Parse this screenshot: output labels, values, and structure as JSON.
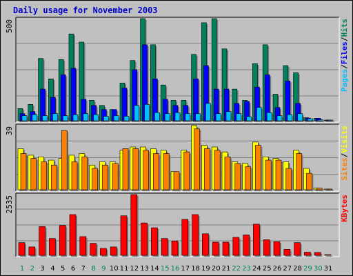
{
  "title": "Daily usage for November 2003",
  "days": [
    "1",
    "2",
    "3",
    "4",
    "5",
    "6",
    "7",
    "8",
    "9",
    "10",
    "11",
    "12",
    "13",
    "14",
    "15",
    "16",
    "17",
    "18",
    "19",
    "20",
    "21",
    "22",
    "23",
    "24",
    "25",
    "26",
    "27",
    "28",
    "29",
    "30",
    "31"
  ],
  "weekend_days": [
    "1",
    "2",
    "8",
    "9",
    "15",
    "16",
    "22",
    "23",
    "29",
    "30"
  ],
  "colors": {
    "hits": "#00805C",
    "files": "#0000FF",
    "pages": "#00C0FF",
    "visits": "#FFFF00",
    "sites": "#FF8000",
    "kbytes": "#FF0000",
    "weekday_label": "#000000",
    "weekend_label": "#00805C",
    "background": "#C0C0C0",
    "title": "#0000CC"
  },
  "panels": {
    "top": {
      "y_max_label": "500",
      "legend": [
        "Pages",
        "Files",
        "Hits"
      ]
    },
    "middle": {
      "y_max_label": "39",
      "legend": [
        "Sites",
        "Visits"
      ]
    },
    "bottom": {
      "y_max_label": "2535",
      "legend": [
        "KBytes"
      ]
    }
  },
  "chart_data": [
    {
      "type": "bar",
      "categories": [
        "1",
        "2",
        "3",
        "4",
        "5",
        "6",
        "7",
        "8",
        "9",
        "10",
        "11",
        "12",
        "13",
        "14",
        "15",
        "16",
        "17",
        "18",
        "19",
        "20",
        "21",
        "22",
        "23",
        "24",
        "25",
        "26",
        "27",
        "28",
        "29",
        "30",
        "31"
      ],
      "ylim": [
        0,
        500
      ],
      "series": [
        {
          "name": "Hits",
          "values": [
            60,
            80,
            305,
            205,
            300,
            425,
            385,
            100,
            75,
            55,
            185,
            295,
            500,
            372,
            175,
            100,
            100,
            325,
            480,
            500,
            352,
            155,
            100,
            280,
            372,
            130,
            270,
            235,
            15,
            12,
            0
          ]
        },
        {
          "name": "Files",
          "values": [
            35,
            45,
            155,
            115,
            225,
            257,
            105,
            75,
            55,
            55,
            160,
            250,
            372,
            205,
            105,
            75,
            75,
            205,
            270,
            155,
            155,
            85,
            95,
            165,
            225,
            65,
            195,
            85,
            13,
            12,
            0
          ]
        },
        {
          "name": "Pages",
          "values": [
            25,
            30,
            25,
            35,
            25,
            30,
            35,
            30,
            22,
            25,
            22,
            75,
            80,
            40,
            35,
            40,
            35,
            35,
            85,
            35,
            45,
            35,
            20,
            65,
            40,
            25,
            30,
            35,
            10,
            5,
            0
          ]
        }
      ]
    },
    {
      "type": "bar",
      "categories": [
        "1",
        "2",
        "3",
        "4",
        "5",
        "6",
        "7",
        "8",
        "9",
        "10",
        "11",
        "12",
        "13",
        "14",
        "15",
        "16",
        "17",
        "18",
        "19",
        "20",
        "21",
        "22",
        "23",
        "24",
        "25",
        "26",
        "27",
        "28",
        "29",
        "30",
        "31"
      ],
      "ylim": [
        0,
        39
      ],
      "series": [
        {
          "name": "Visits",
          "values": [
            25,
            21,
            20,
            18,
            19,
            21,
            22,
            15,
            17,
            17,
            24,
            26,
            26,
            25,
            24,
            11,
            24,
            39,
            27,
            26,
            23,
            17,
            16,
            29,
            20,
            19,
            17,
            24,
            13,
            1,
            0
          ]
        },
        {
          "name": "Sites",
          "values": [
            22,
            19,
            17,
            15,
            36,
            17,
            20,
            13,
            15,
            16,
            25,
            25,
            24,
            22,
            22,
            11,
            23,
            37,
            25,
            24,
            20,
            16,
            14,
            27,
            18,
            18,
            13,
            22,
            10,
            1,
            0
          ]
        }
      ]
    },
    {
      "type": "bar",
      "categories": [
        "1",
        "2",
        "3",
        "4",
        "5",
        "6",
        "7",
        "8",
        "9",
        "10",
        "11",
        "12",
        "13",
        "14",
        "15",
        "16",
        "17",
        "18",
        "19",
        "20",
        "21",
        "22",
        "23",
        "24",
        "25",
        "26",
        "27",
        "28",
        "29",
        "30",
        "31"
      ],
      "ylim": [
        0,
        2535
      ],
      "series": [
        {
          "name": "KBytes",
          "values": [
            530,
            350,
            1200,
            700,
            1250,
            1700,
            780,
            500,
            290,
            350,
            1650,
            2535,
            1350,
            1150,
            700,
            600,
            1500,
            1700,
            900,
            550,
            550,
            750,
            850,
            1300,
            650,
            570,
            250,
            530,
            130,
            120,
            0
          ]
        }
      ]
    }
  ]
}
